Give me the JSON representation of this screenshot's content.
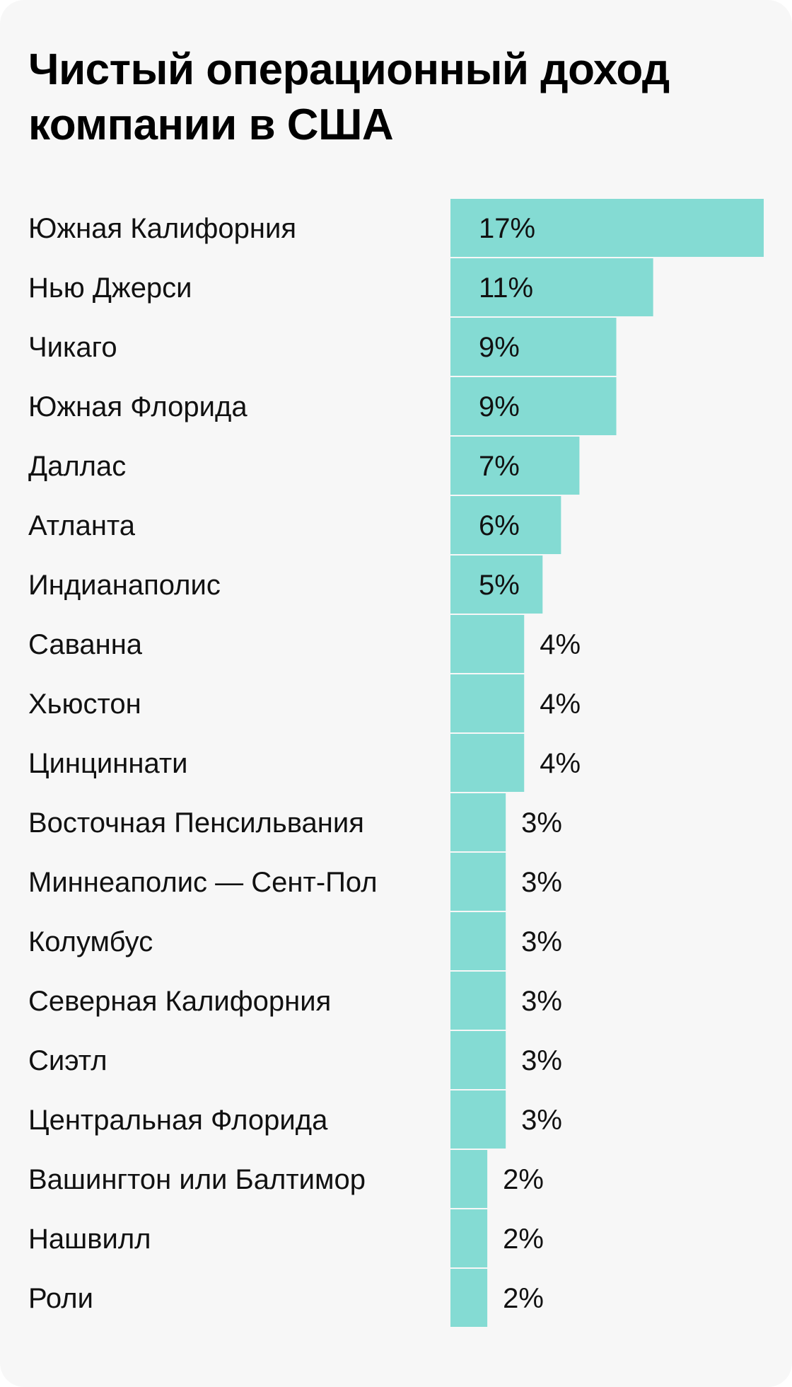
{
  "chart_data": {
    "type": "bar",
    "orientation": "horizontal",
    "title": "Чистый операционный доход компании в США",
    "categories": [
      "Южная Калифорния",
      "Нью Джерси",
      "Чикаго",
      "Южная Флорида",
      "Даллас",
      "Атланта",
      "Индианаполис",
      "Саванна",
      "Хьюстон",
      "Цинциннати",
      "Восточная Пенсильвания",
      "Миннеаполис — Сент-Пол",
      "Колумбус",
      "Северная Калифорния",
      "Сиэтл",
      "Центральная Флорида",
      "Вашингтон или Балтимор",
      "Нашвилл",
      "Роли"
    ],
    "values": [
      17,
      11,
      9,
      9,
      7,
      6,
      5,
      4,
      4,
      4,
      3,
      3,
      3,
      3,
      3,
      3,
      2,
      2,
      2
    ],
    "value_labels": [
      "17%",
      "11%",
      "9%",
      "9%",
      "7%",
      "6%",
      "5%",
      "4%",
      "4%",
      "4%",
      "3%",
      "3%",
      "3%",
      "3%",
      "3%",
      "3%",
      "2%",
      "2%",
      "2%"
    ],
    "unit": "%",
    "xlim": [
      0,
      17
    ],
    "grid": false,
    "legend": "none",
    "colors": {
      "bar": "#84dbd3",
      "background": "#f7f7f7",
      "text": "#111111"
    }
  }
}
